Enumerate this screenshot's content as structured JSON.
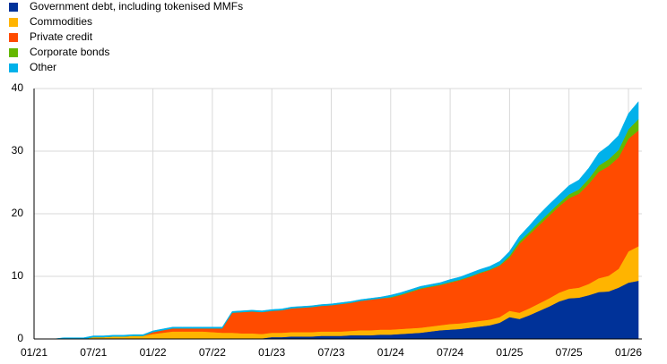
{
  "chart_data": {
    "type": "stacked_area",
    "categories": [
      "01/21",
      null,
      null,
      null,
      null,
      null,
      "07/21",
      null,
      null,
      null,
      null,
      null,
      "01/22",
      null,
      null,
      null,
      null,
      null,
      "07/22",
      null,
      null,
      null,
      null,
      null,
      "01/23",
      null,
      null,
      null,
      null,
      null,
      "07/23",
      null,
      null,
      null,
      null,
      null,
      "01/24",
      null,
      null,
      null,
      null,
      null,
      "07/24",
      null,
      null,
      null,
      null,
      null,
      "01/25",
      null,
      null,
      null,
      null,
      null,
      "07/25",
      null,
      null,
      null,
      null,
      null,
      "01/26",
      null
    ],
    "series": [
      {
        "name": "Government debt, including tokenised MMFs",
        "color": "#003299",
        "values": [
          0,
          0,
          0,
          0,
          0,
          0,
          0,
          0,
          0,
          0,
          0,
          0,
          0,
          0,
          0,
          0,
          0,
          0,
          0,
          0,
          0.1,
          0.1,
          0.1,
          0.1,
          0.3,
          0.3,
          0.4,
          0.4,
          0.4,
          0.5,
          0.5,
          0.5,
          0.6,
          0.6,
          0.6,
          0.7,
          0.7,
          0.8,
          0.9,
          1.0,
          1.2,
          1.4,
          1.5,
          1.6,
          1.8,
          2.0,
          2.2,
          2.6,
          3.5,
          3.2,
          3.8,
          4.5,
          5.2,
          6.0,
          6.5,
          6.6,
          7.0,
          7.5,
          7.6,
          8.2,
          9.0,
          9.3
        ]
      },
      {
        "name": "Commodities",
        "color": "#ffb400",
        "values": [
          0,
          0,
          0,
          0,
          0,
          0,
          0.3,
          0.3,
          0.4,
          0.4,
          0.5,
          0.5,
          0.8,
          1.0,
          1.2,
          1.2,
          1.2,
          1.2,
          1.1,
          1.0,
          0.9,
          0.8,
          0.8,
          0.7,
          0.7,
          0.7,
          0.7,
          0.7,
          0.7,
          0.7,
          0.7,
          0.7,
          0.7,
          0.8,
          0.8,
          0.8,
          0.8,
          0.8,
          0.8,
          0.8,
          0.8,
          0.8,
          0.9,
          0.9,
          0.9,
          0.9,
          0.9,
          0.9,
          1.0,
          1.0,
          1.1,
          1.2,
          1.3,
          1.4,
          1.5,
          1.6,
          1.8,
          2.2,
          2.5,
          3.0,
          5.0,
          5.5
        ]
      },
      {
        "name": "Private credit",
        "color": "#ff4b00",
        "values": [
          0,
          0,
          0,
          0,
          0,
          0,
          0,
          0,
          0,
          0,
          0,
          0,
          0.3,
          0.4,
          0.5,
          0.5,
          0.5,
          0.5,
          0.6,
          0.7,
          3.2,
          3.4,
          3.5,
          3.5,
          3.5,
          3.6,
          3.8,
          3.9,
          4.0,
          4.1,
          4.2,
          4.4,
          4.5,
          4.7,
          4.9,
          5.0,
          5.1,
          5.4,
          5.8,
          6.2,
          6.3,
          6.4,
          6.6,
          6.9,
          7.2,
          7.6,
          7.9,
          8.2,
          8.5,
          11.0,
          11.8,
          12.5,
          13.2,
          13.8,
          14.5,
          15.0,
          16.0,
          17.0,
          17.5,
          17.8,
          18.0,
          18.5
        ]
      },
      {
        "name": "Corporate bonds",
        "color": "#65b800",
        "values": [
          0,
          0,
          0,
          0,
          0,
          0,
          0,
          0,
          0,
          0,
          0,
          0,
          0,
          0,
          0,
          0,
          0,
          0,
          0,
          0,
          0,
          0,
          0,
          0,
          0,
          0,
          0,
          0,
          0,
          0,
          0,
          0,
          0,
          0,
          0,
          0,
          0.1,
          0.1,
          0.1,
          0.1,
          0.1,
          0.1,
          0.1,
          0.1,
          0.1,
          0.1,
          0.1,
          0.1,
          0.3,
          0.4,
          0.4,
          0.5,
          0.5,
          0.5,
          0.6,
          0.7,
          0.8,
          1.0,
          1.1,
          1.2,
          1.5,
          1.8
        ]
      },
      {
        "name": "Other",
        "color": "#00b1ea",
        "values": [
          0,
          0,
          0,
          0.2,
          0.2,
          0.2,
          0.2,
          0.2,
          0.2,
          0.2,
          0.2,
          0.2,
          0.2,
          0.2,
          0.2,
          0.2,
          0.2,
          0.2,
          0.2,
          0.2,
          0.2,
          0.2,
          0.2,
          0.2,
          0.2,
          0.2,
          0.2,
          0.2,
          0.2,
          0.2,
          0.2,
          0.2,
          0.2,
          0.2,
          0.2,
          0.2,
          0.3,
          0.3,
          0.3,
          0.3,
          0.3,
          0.3,
          0.4,
          0.4,
          0.5,
          0.5,
          0.5,
          0.6,
          0.7,
          0.8,
          1.0,
          1.2,
          1.3,
          1.3,
          1.4,
          1.5,
          1.7,
          2.0,
          2.2,
          2.3,
          2.5,
          2.8
        ]
      }
    ],
    "ylim": [
      0,
      40
    ],
    "yticks": [
      0,
      10,
      20,
      30,
      40
    ],
    "grid": true,
    "legend": "top-left"
  }
}
